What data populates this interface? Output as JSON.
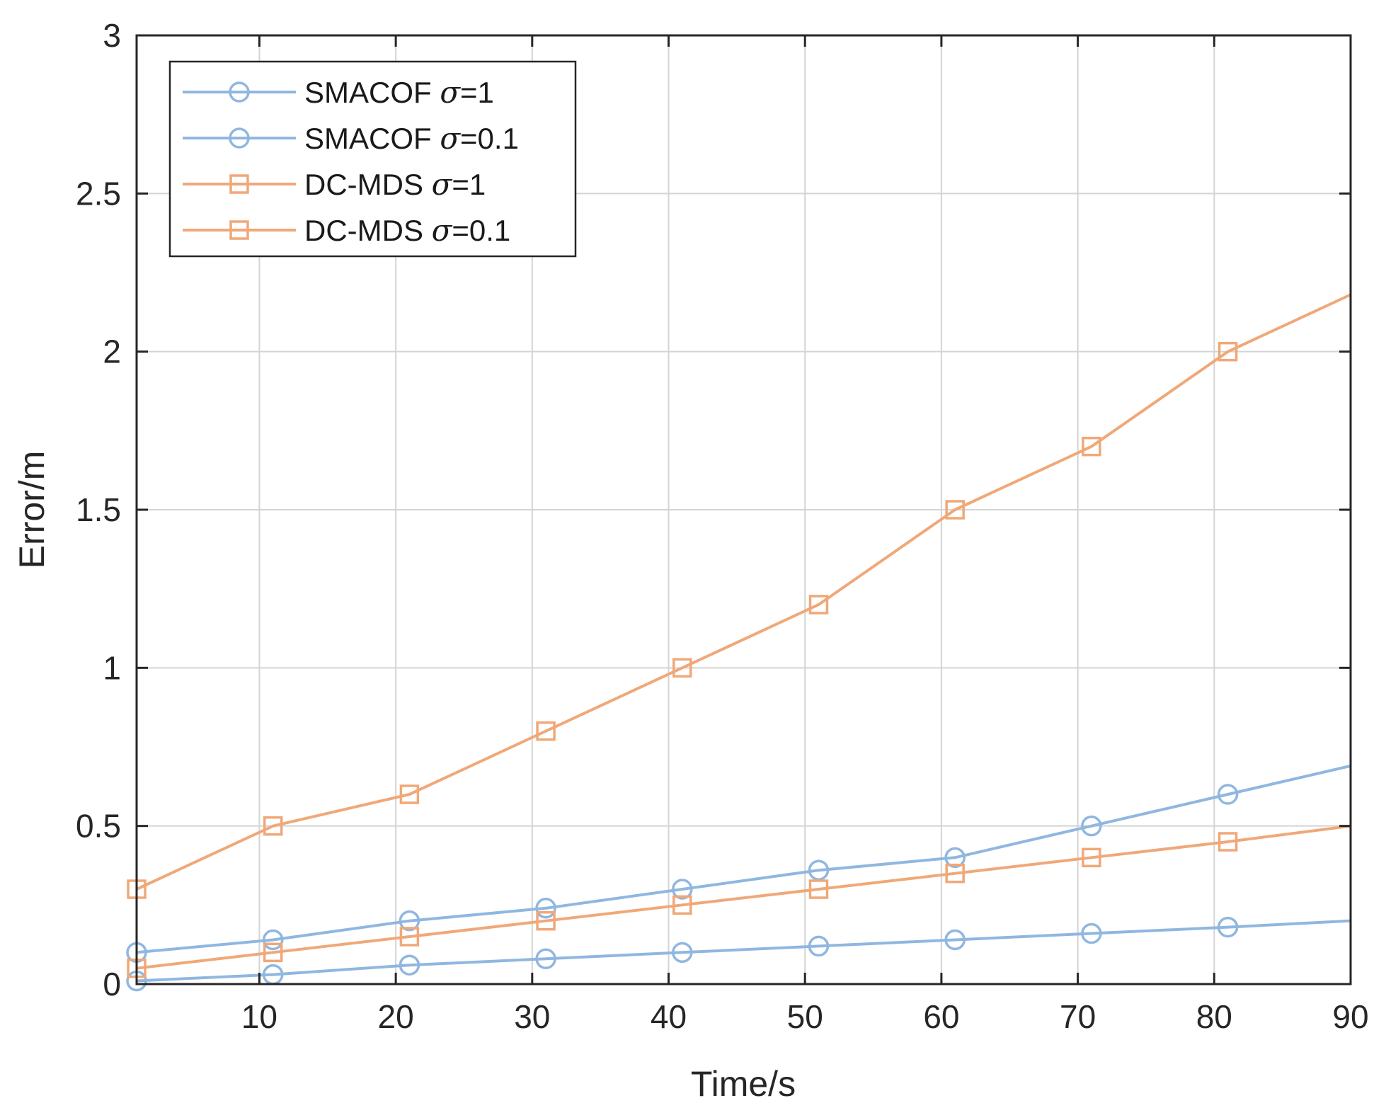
{
  "chart_data": {
    "type": "line",
    "title": "",
    "xlabel": "Time/s",
    "ylabel": "Error/m",
    "xlim": [
      1,
      90
    ],
    "ylim": [
      0,
      3
    ],
    "xticks": [
      10,
      20,
      30,
      40,
      50,
      60,
      70,
      80,
      90
    ],
    "yticks": [
      0,
      0.5,
      1,
      1.5,
      2,
      2.5,
      3
    ],
    "xtick_labels": [
      "10",
      "20",
      "30",
      "40",
      "50",
      "60",
      "70",
      "80",
      "90"
    ],
    "ytick_labels": [
      "0",
      "0.5",
      "1",
      "1.5",
      "2",
      "2.5",
      "3"
    ],
    "grid": true,
    "legend_position": "top-left",
    "x": [
      1,
      11,
      21,
      31,
      41,
      51,
      61,
      71,
      81,
      90
    ],
    "series": [
      {
        "name": "SMACOF",
        "sigma_label": "=1",
        "color": "#8fb7e0",
        "marker": "circle",
        "values": [
          0.1,
          0.14,
          0.2,
          0.24,
          0.3,
          0.36,
          0.4,
          0.5,
          0.6,
          0.69
        ]
      },
      {
        "name": "SMACOF",
        "sigma_label": "=0.1",
        "color": "#8fb7e0",
        "marker": "circle",
        "values": [
          0.01,
          0.03,
          0.06,
          0.08,
          0.1,
          0.12,
          0.14,
          0.16,
          0.18,
          0.2
        ]
      },
      {
        "name": "DC-MDS",
        "sigma_label": "=1",
        "color": "#f0a878",
        "marker": "square",
        "values": [
          0.3,
          0.5,
          0.6,
          0.8,
          1.0,
          1.2,
          1.5,
          1.7,
          2.0,
          2.18
        ]
      },
      {
        "name": "DC-MDS",
        "sigma_label": "=0.1",
        "color": "#f0a878",
        "marker": "square",
        "values": [
          0.05,
          0.1,
          0.15,
          0.2,
          0.25,
          0.3,
          0.35,
          0.4,
          0.45,
          0.5
        ]
      }
    ]
  },
  "legend": {
    "sigma_symbol": "σ"
  },
  "colors": {
    "axis": "#262626",
    "grid": "#d4d4d4"
  }
}
